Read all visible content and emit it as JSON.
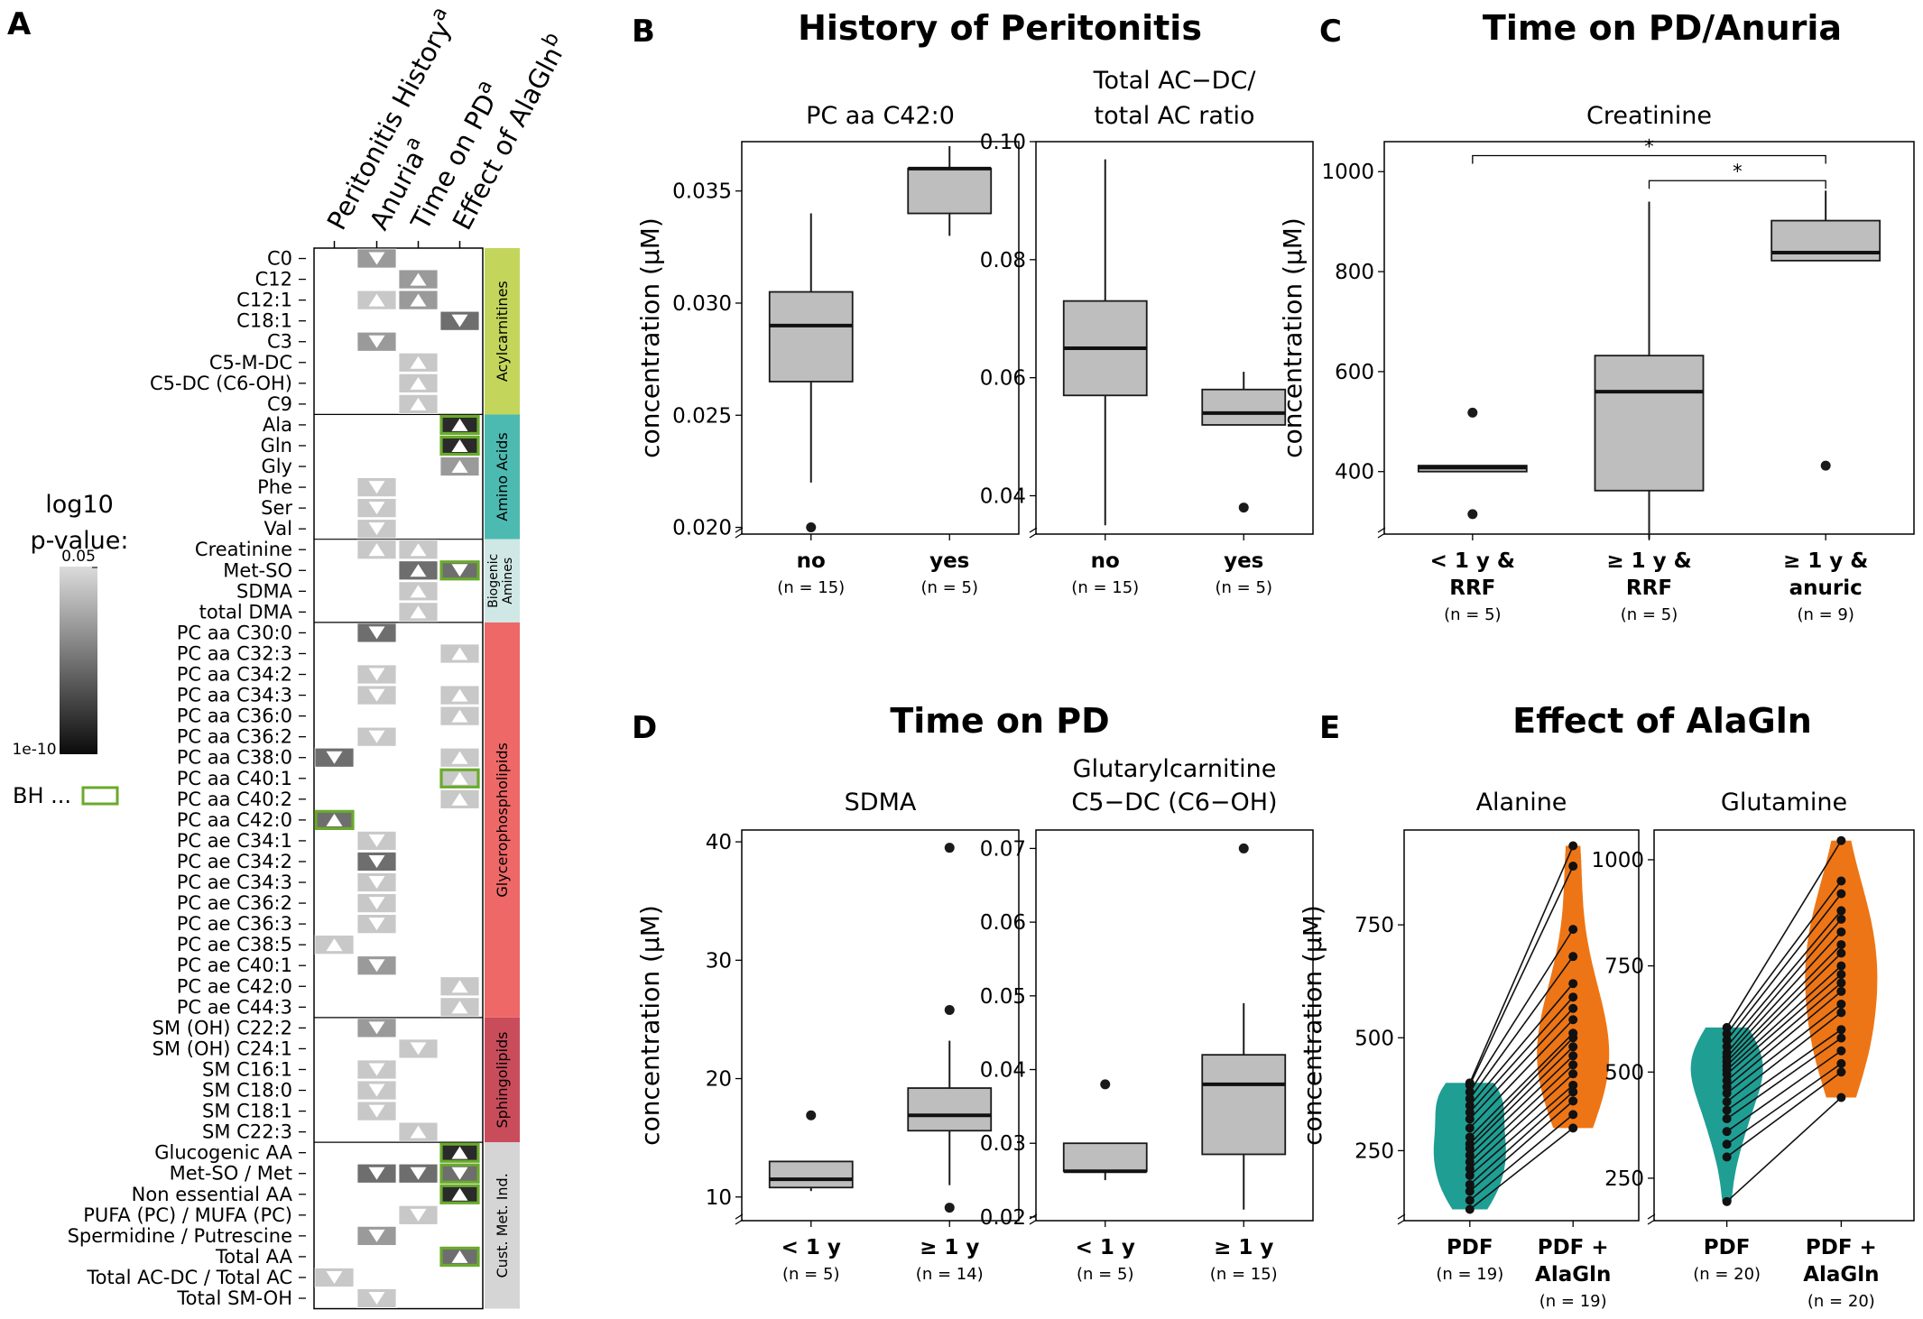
{
  "panel_labels": {
    "A": "A",
    "B": "B",
    "C": "C",
    "D": "D",
    "E": "E"
  },
  "panel_titles": {
    "B": "History of Peritonitis",
    "C": "Time on PD/Anuria",
    "D": "Time on PD",
    "E": "Effect of AlaGln"
  },
  "ylabel": "concentration (µM)",
  "colors": {
    "tile_light": "#c8c8c8",
    "tile_mid": "#9a9a9a",
    "tile_dark": "#6e6e6e",
    "tile_darkest": "#2a2a2a",
    "bh_border": "#6aaa2c",
    "box_fill": "#bebebe",
    "pdf": "#1f9e94",
    "alagln": "#ee7515"
  },
  "legend": {
    "title_line1": "log10",
    "title_line2": "p-value:",
    "top": "0.05",
    "bottom": "1e-10",
    "bh_label": "BH ..."
  },
  "chart_data": [
    {
      "panel": "A",
      "type": "heatmap",
      "columns": [
        {
          "label": "Peritonitis History",
          "sup": "a"
        },
        {
          "label": "Anuria",
          "sup": "a"
        },
        {
          "label": "Time on PD",
          "sup": "a"
        },
        {
          "label": "Effect of AlaGln",
          "sup": "b"
        }
      ],
      "groups": [
        {
          "name": "Acylcarnitines",
          "color": "#c3d65b",
          "lines": [
            "Acylcarnitines"
          ],
          "start": 0,
          "count": 8
        },
        {
          "name": "Amino Acids",
          "color": "#4dbab2",
          "lines": [
            "Amino Acids"
          ],
          "start": 8,
          "count": 6
        },
        {
          "name": "Biogenic Amines",
          "color": "#cfe8e6",
          "lines": [
            "Biogenic",
            "Amines"
          ],
          "start": 14,
          "count": 4
        },
        {
          "name": "Glycerophospholipids",
          "color": "#ee6868",
          "lines": [
            "Glycerophospholipids"
          ],
          "start": 18,
          "count": 19
        },
        {
          "name": "Sphingolipids",
          "color": "#c94c5b",
          "lines": [
            "Sphingolipids"
          ],
          "start": 37,
          "count": 6
        },
        {
          "name": "Cust. Met. Ind.",
          "color": "#d5d5d5",
          "lines": [
            "Cust. Met. Ind."
          ],
          "start": 43,
          "count": 8
        }
      ],
      "rows": [
        {
          "name": "C0",
          "cells": [
            null,
            "d2",
            null,
            null
          ]
        },
        {
          "name": "C12",
          "cells": [
            null,
            null,
            "u2",
            null
          ]
        },
        {
          "name": "C12:1",
          "cells": [
            null,
            "u1",
            "u2",
            null
          ]
        },
        {
          "name": "C18:1",
          "cells": [
            null,
            null,
            null,
            "d3"
          ]
        },
        {
          "name": "C3",
          "cells": [
            null,
            "d2",
            null,
            null
          ]
        },
        {
          "name": "C5-M-DC",
          "cells": [
            null,
            null,
            "u1",
            null
          ]
        },
        {
          "name": "C5-DC (C6-OH)",
          "cells": [
            null,
            null,
            "u1",
            null
          ]
        },
        {
          "name": "C9",
          "cells": [
            null,
            null,
            "u1",
            null
          ]
        },
        {
          "name": "Ala",
          "cells": [
            null,
            null,
            null,
            "u4b"
          ]
        },
        {
          "name": "Gln",
          "cells": [
            null,
            null,
            null,
            "u4b"
          ]
        },
        {
          "name": "Gly",
          "cells": [
            null,
            null,
            null,
            "u2"
          ]
        },
        {
          "name": "Phe",
          "cells": [
            null,
            "d1",
            null,
            null
          ]
        },
        {
          "name": "Ser",
          "cells": [
            null,
            "d1",
            null,
            null
          ]
        },
        {
          "name": "Val",
          "cells": [
            null,
            "d1",
            null,
            null
          ]
        },
        {
          "name": "Creatinine",
          "cells": [
            null,
            "u1",
            "u1",
            null
          ]
        },
        {
          "name": "Met-SO",
          "cells": [
            null,
            null,
            "u3",
            "d3b"
          ]
        },
        {
          "name": "SDMA",
          "cells": [
            null,
            null,
            "u1",
            null
          ]
        },
        {
          "name": "total DMA",
          "cells": [
            null,
            null,
            "u1",
            null
          ]
        },
        {
          "name": "PC aa C30:0",
          "cells": [
            null,
            "d3",
            null,
            null
          ]
        },
        {
          "name": "PC aa C32:3",
          "cells": [
            null,
            null,
            null,
            "u1"
          ]
        },
        {
          "name": "PC aa C34:2",
          "cells": [
            null,
            "d1",
            null,
            null
          ]
        },
        {
          "name": "PC aa C34:3",
          "cells": [
            null,
            "d1",
            null,
            "u1"
          ]
        },
        {
          "name": "PC aa C36:0",
          "cells": [
            null,
            null,
            null,
            "u1"
          ]
        },
        {
          "name": "PC aa C36:2",
          "cells": [
            null,
            "d1",
            null,
            null
          ]
        },
        {
          "name": "PC aa C38:0",
          "cells": [
            "d3",
            null,
            null,
            "u1"
          ]
        },
        {
          "name": "PC aa C40:1",
          "cells": [
            null,
            null,
            null,
            "u1b"
          ]
        },
        {
          "name": "PC aa C40:2",
          "cells": [
            null,
            null,
            null,
            "u1"
          ]
        },
        {
          "name": "PC aa C42:0",
          "cells": [
            "u3b",
            null,
            null,
            null
          ]
        },
        {
          "name": "PC ae C34:1",
          "cells": [
            null,
            "d1",
            null,
            null
          ]
        },
        {
          "name": "PC ae C34:2",
          "cells": [
            null,
            "d3",
            null,
            null
          ]
        },
        {
          "name": "PC ae C34:3",
          "cells": [
            null,
            "d1",
            null,
            null
          ]
        },
        {
          "name": "PC ae C36:2",
          "cells": [
            null,
            "d1",
            null,
            null
          ]
        },
        {
          "name": "PC ae C36:3",
          "cells": [
            null,
            "d1",
            null,
            null
          ]
        },
        {
          "name": "PC ae C38:5",
          "cells": [
            "u1",
            null,
            null,
            null
          ]
        },
        {
          "name": "PC ae C40:1",
          "cells": [
            null,
            "d2",
            null,
            null
          ]
        },
        {
          "name": "PC ae C42:0",
          "cells": [
            null,
            null,
            null,
            "u1"
          ]
        },
        {
          "name": "PC ae C44:3",
          "cells": [
            null,
            null,
            null,
            "u1"
          ]
        },
        {
          "name": "SM (OH) C22:2",
          "cells": [
            null,
            "d2",
            null,
            null
          ]
        },
        {
          "name": "SM (OH) C24:1",
          "cells": [
            null,
            null,
            "d1",
            null
          ]
        },
        {
          "name": "SM C16:1",
          "cells": [
            null,
            "d1",
            null,
            null
          ]
        },
        {
          "name": "SM C18:0",
          "cells": [
            null,
            "d1",
            null,
            null
          ]
        },
        {
          "name": "SM C18:1",
          "cells": [
            null,
            "d1",
            null,
            null
          ]
        },
        {
          "name": "SM C22:3",
          "cells": [
            null,
            null,
            "u1",
            null
          ]
        },
        {
          "name": "Glucogenic AA",
          "cells": [
            null,
            null,
            null,
            "u4b"
          ]
        },
        {
          "name": "Met-SO / Met",
          "cells": [
            null,
            "d3",
            "d3",
            "d3b"
          ]
        },
        {
          "name": "Non essential AA",
          "cells": [
            null,
            null,
            null,
            "u4b"
          ]
        },
        {
          "name": "PUFA (PC) / MUFA (PC)",
          "cells": [
            null,
            null,
            "d1",
            null
          ]
        },
        {
          "name": "Spermidine / Putrescine",
          "cells": [
            null,
            "d2",
            null,
            null
          ]
        },
        {
          "name": "Total AA",
          "cells": [
            null,
            null,
            null,
            "u3b"
          ]
        },
        {
          "name": "Total AC-DC / Total AC",
          "cells": [
            "d1",
            null,
            null,
            null
          ]
        },
        {
          "name": "Total SM-OH",
          "cells": [
            null,
            "d1",
            null,
            null
          ]
        }
      ]
    },
    {
      "panel": "B1",
      "type": "box",
      "title": "PC aa C42:0",
      "ylim": [
        0.0197,
        0.0372
      ],
      "ticks": [
        {
          "v": 0.02,
          "t": "0.020"
        },
        {
          "v": 0.025,
          "t": "0.025"
        },
        {
          "v": 0.03,
          "t": "0.030"
        },
        {
          "v": 0.035,
          "t": "0.035"
        }
      ],
      "groups": [
        {
          "lines": [
            "no"
          ],
          "n": "(n = 15)",
          "min": 0.022,
          "q1": 0.0265,
          "median": 0.029,
          "q3": 0.0305,
          "max": 0.034,
          "outliers": [
            0.02
          ]
        },
        {
          "lines": [
            "yes"
          ],
          "n": "(n = 5)",
          "min": 0.033,
          "q1": 0.034,
          "median": 0.036,
          "q3": 0.036,
          "max": 0.037,
          "outliers": []
        }
      ]
    },
    {
      "panel": "B2",
      "type": "box",
      "title_lines": [
        "Total AC−DC/",
        "total AC ratio"
      ],
      "ylim": [
        0.0335,
        0.1
      ],
      "ticks": [
        {
          "v": 0.04,
          "t": "0.04"
        },
        {
          "v": 0.06,
          "t": "0.06"
        },
        {
          "v": 0.08,
          "t": "0.08"
        },
        {
          "v": 0.1,
          "t": "0.10"
        }
      ],
      "groups": [
        {
          "lines": [
            "no"
          ],
          "n": "(n = 15)",
          "min": 0.035,
          "q1": 0.057,
          "median": 0.065,
          "q3": 0.073,
          "max": 0.097,
          "outliers": []
        },
        {
          "lines": [
            "yes"
          ],
          "n": "(n = 5)",
          "min": 0.052,
          "q1": 0.052,
          "median": 0.054,
          "q3": 0.058,
          "max": 0.061,
          "outliers": [
            0.038
          ]
        }
      ]
    },
    {
      "panel": "C",
      "type": "box",
      "title": "Creatinine",
      "ylim": [
        275,
        1060
      ],
      "ticks": [
        {
          "v": 400,
          "t": "400"
        },
        {
          "v": 600,
          "t": "600"
        },
        {
          "v": 800,
          "t": "800"
        },
        {
          "v": 1000,
          "t": "1000"
        }
      ],
      "groups": [
        {
          "lines": [
            "< 1 y &",
            "RRF"
          ],
          "n": "(n = 5)",
          "min": 400,
          "q1": 400,
          "median": 408,
          "q3": 412,
          "max": 412,
          "outliers": [
            315,
            518
          ]
        },
        {
          "lines": [
            "≥ 1 y &",
            "RRF"
          ],
          "n": "(n = 5)",
          "min": 265,
          "q1": 362,
          "median": 560,
          "q3": 632,
          "max": 940,
          "outliers": []
        },
        {
          "lines": [
            "≥ 1 y &",
            "anuric"
          ],
          "n": "(n = 9)",
          "min": 822,
          "q1": 822,
          "median": 838,
          "q3": 902,
          "max": 962,
          "outliers": [
            412
          ]
        }
      ],
      "significance": [
        {
          "from": 0,
          "to": 2,
          "label": "*",
          "y": 1032
        },
        {
          "from": 1,
          "to": 2,
          "label": "*",
          "y": 982
        }
      ]
    },
    {
      "panel": "D1",
      "type": "box",
      "title": "SDMA",
      "ylim": [
        8,
        41
      ],
      "ticks": [
        {
          "v": 10,
          "t": "10"
        },
        {
          "v": 20,
          "t": "20"
        },
        {
          "v": 30,
          "t": "30"
        },
        {
          "v": 40,
          "t": "40"
        }
      ],
      "groups": [
        {
          "lines": [
            "< 1 y"
          ],
          "n": "(n = 5)",
          "min": 10.5,
          "q1": 10.8,
          "median": 11.5,
          "q3": 13,
          "max": 13,
          "outliers": [
            16.9
          ]
        },
        {
          "lines": [
            "≥ 1 y"
          ],
          "n": "(n = 14)",
          "min": 11,
          "q1": 15.6,
          "median": 16.9,
          "q3": 19.2,
          "max": 23.2,
          "outliers": [
            39.5,
            25.8,
            9.1
          ]
        }
      ]
    },
    {
      "panel": "D2",
      "type": "box",
      "title_lines": [
        "Glutarylcarnitine",
        "C5−DC (C6−OH)"
      ],
      "ylim": [
        0.0195,
        0.0725
      ],
      "ticks": [
        {
          "v": 0.02,
          "t": "0.02"
        },
        {
          "v": 0.03,
          "t": "0.03"
        },
        {
          "v": 0.04,
          "t": "0.04"
        },
        {
          "v": 0.05,
          "t": "0.05"
        },
        {
          "v": 0.06,
          "t": "0.06"
        },
        {
          "v": 0.07,
          "t": "0.07"
        }
      ],
      "groups": [
        {
          "lines": [
            "< 1 y"
          ],
          "n": "(n = 5)",
          "min": 0.025,
          "q1": 0.0262,
          "median": 0.0262,
          "q3": 0.03,
          "max": 0.03,
          "outliers": [
            0.038
          ]
        },
        {
          "lines": [
            "≥ 1 y"
          ],
          "n": "(n = 15)",
          "min": 0.021,
          "q1": 0.0285,
          "median": 0.038,
          "q3": 0.042,
          "max": 0.049,
          "outliers": [
            0.07
          ]
        }
      ]
    },
    {
      "panel": "E1",
      "type": "violin",
      "title": "Alanine",
      "ylim": [
        95,
        960
      ],
      "ticks": [
        {
          "v": 250,
          "t": "250"
        },
        {
          "v": 500,
          "t": "500"
        },
        {
          "v": 750,
          "t": "750"
        }
      ],
      "groups": [
        {
          "lines": [
            "PDF"
          ],
          "n": "(n = 19)"
        },
        {
          "lines": [
            "PDF +",
            "AlaGln"
          ],
          "n": "(n = 19)"
        }
      ],
      "pairs": [
        [
          120,
          300
        ],
        [
          140,
          330
        ],
        [
          160,
          360
        ],
        [
          175,
          380
        ],
        [
          195,
          395
        ],
        [
          210,
          420
        ],
        [
          225,
          440
        ],
        [
          240,
          460
        ],
        [
          255,
          480
        ],
        [
          265,
          500
        ],
        [
          280,
          510
        ],
        [
          300,
          540
        ],
        [
          320,
          565
        ],
        [
          335,
          590
        ],
        [
          350,
          620
        ],
        [
          365,
          680
        ],
        [
          380,
          740
        ],
        [
          395,
          880
        ],
        [
          400,
          925
        ]
      ]
    },
    {
      "panel": "E2",
      "type": "violin",
      "title": "Glutamine",
      "ylim": [
        150,
        1070
      ],
      "ticks": [
        {
          "v": 250,
          "t": "250"
        },
        {
          "v": 500,
          "t": "500"
        },
        {
          "v": 750,
          "t": "750"
        },
        {
          "v": 1000,
          "t": "1000"
        }
      ],
      "groups": [
        {
          "lines": [
            "PDF"
          ],
          "n": "(n = 20)"
        },
        {
          "lines": [
            "PDF +",
            "AlaGln"
          ],
          "n": "(n = 20)"
        }
      ],
      "pairs": [
        [
          195,
          440
        ],
        [
          300,
          500
        ],
        [
          330,
          520
        ],
        [
          360,
          550
        ],
        [
          390,
          580
        ],
        [
          410,
          600
        ],
        [
          430,
          640
        ],
        [
          450,
          660
        ],
        [
          465,
          690
        ],
        [
          480,
          710
        ],
        [
          495,
          730
        ],
        [
          505,
          750
        ],
        [
          515,
          780
        ],
        [
          525,
          800
        ],
        [
          535,
          830
        ],
        [
          545,
          860
        ],
        [
          560,
          880
        ],
        [
          575,
          920
        ],
        [
          590,
          950
        ],
        [
          605,
          1045
        ]
      ]
    }
  ]
}
